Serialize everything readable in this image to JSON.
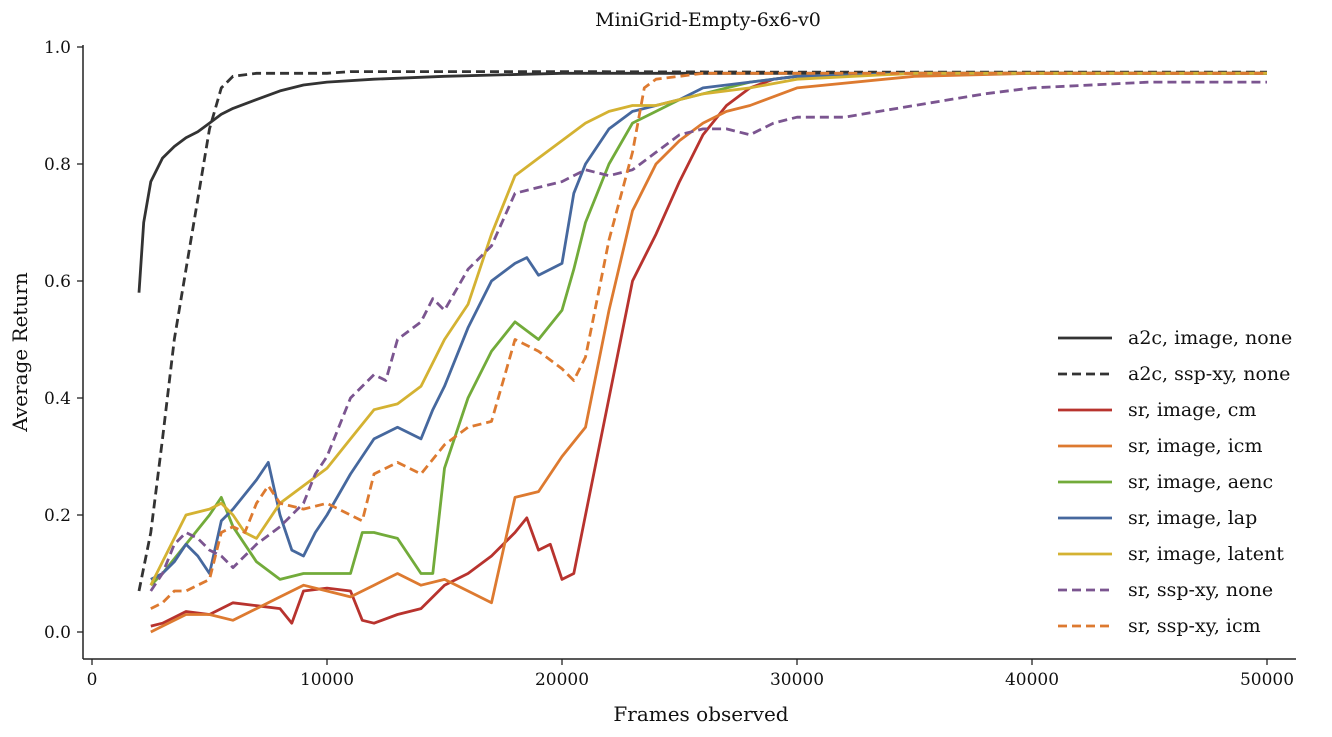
{
  "chart_data": {
    "type": "line",
    "title": "MiniGrid-Empty-6x6-v0",
    "xlabel": "Frames observed",
    "ylabel": "Average Return",
    "xlim": [
      0,
      50000
    ],
    "ylim": [
      0.0,
      1.0
    ],
    "xticks": [
      "0",
      "10000",
      "20000",
      "30000",
      "40000",
      "50000"
    ],
    "yticks": [
      "0.0",
      "0.2",
      "0.4",
      "0.6",
      "0.8",
      "1.0"
    ],
    "grid": false,
    "legend_position": "lower-right",
    "series": [
      {
        "name": "a2c, image, none",
        "color": "#333333",
        "dash": "solid",
        "x": [
          2000,
          2200,
          2500,
          3000,
          3500,
          4000,
          4500,
          5000,
          5500,
          6000,
          7000,
          8000,
          9000,
          10000,
          12000,
          15000,
          20000,
          30000,
          40000,
          50000
        ],
        "y": [
          0.58,
          0.7,
          0.77,
          0.81,
          0.83,
          0.845,
          0.855,
          0.87,
          0.885,
          0.895,
          0.91,
          0.925,
          0.935,
          0.94,
          0.945,
          0.95,
          0.955,
          0.955,
          0.955,
          0.955
        ]
      },
      {
        "name": "a2c, ssp-xy, none",
        "color": "#333333",
        "dash": "dashed",
        "x": [
          2000,
          2500,
          3000,
          3500,
          4000,
          4500,
          5000,
          5500,
          6000,
          7000,
          8000,
          9000,
          10000,
          11000,
          15000,
          20000,
          30000,
          40000,
          50000
        ],
        "y": [
          0.07,
          0.17,
          0.33,
          0.5,
          0.62,
          0.74,
          0.86,
          0.93,
          0.95,
          0.955,
          0.955,
          0.955,
          0.955,
          0.958,
          0.958,
          0.958,
          0.957,
          0.957,
          0.957
        ]
      },
      {
        "name": "sr, image, cm",
        "color": "#b8332e",
        "dash": "solid",
        "x": [
          2500,
          3000,
          4000,
          5000,
          6000,
          7000,
          8000,
          8500,
          9000,
          10000,
          11000,
          11500,
          12000,
          13000,
          14000,
          15000,
          16000,
          17000,
          18000,
          18500,
          19000,
          19500,
          20000,
          20500,
          21000,
          22000,
          23000,
          24000,
          25000,
          26000,
          27000,
          28000,
          29000,
          30000,
          35000,
          40000,
          50000
        ],
        "y": [
          0.01,
          0.015,
          0.035,
          0.03,
          0.05,
          0.045,
          0.04,
          0.015,
          0.07,
          0.075,
          0.07,
          0.02,
          0.015,
          0.03,
          0.04,
          0.08,
          0.1,
          0.13,
          0.17,
          0.195,
          0.14,
          0.15,
          0.09,
          0.1,
          0.2,
          0.4,
          0.6,
          0.68,
          0.77,
          0.85,
          0.9,
          0.93,
          0.945,
          0.95,
          0.955,
          0.955,
          0.955
        ]
      },
      {
        "name": "sr, image, icm",
        "color": "#dd7a30",
        "dash": "solid",
        "x": [
          2500,
          3000,
          4000,
          5000,
          6000,
          7000,
          8000,
          9000,
          10000,
          11000,
          12000,
          13000,
          14000,
          15000,
          16000,
          17000,
          18000,
          19000,
          20000,
          21000,
          22000,
          23000,
          24000,
          25000,
          26000,
          27000,
          28000,
          30000,
          35000,
          40000,
          50000
        ],
        "y": [
          0.0,
          0.01,
          0.03,
          0.03,
          0.02,
          0.04,
          0.06,
          0.08,
          0.07,
          0.06,
          0.08,
          0.1,
          0.08,
          0.09,
          0.07,
          0.05,
          0.23,
          0.24,
          0.3,
          0.35,
          0.55,
          0.72,
          0.8,
          0.84,
          0.87,
          0.89,
          0.9,
          0.93,
          0.95,
          0.955,
          0.955
        ]
      },
      {
        "name": "sr, image, aenc",
        "color": "#72ab3a",
        "dash": "solid",
        "x": [
          2500,
          3000,
          4000,
          5000,
          5500,
          6000,
          7000,
          8000,
          9000,
          10000,
          11000,
          11500,
          12000,
          13000,
          14000,
          14500,
          15000,
          16000,
          17000,
          18000,
          19000,
          20000,
          20500,
          21000,
          22000,
          23000,
          24000,
          25000,
          26000,
          28000,
          30000,
          35000,
          40000,
          50000
        ],
        "y": [
          0.08,
          0.1,
          0.15,
          0.2,
          0.23,
          0.18,
          0.12,
          0.09,
          0.1,
          0.1,
          0.1,
          0.17,
          0.17,
          0.16,
          0.1,
          0.1,
          0.28,
          0.4,
          0.48,
          0.53,
          0.5,
          0.55,
          0.62,
          0.7,
          0.8,
          0.87,
          0.89,
          0.91,
          0.92,
          0.94,
          0.95,
          0.955,
          0.955,
          0.955
        ]
      },
      {
        "name": "sr, image, lap",
        "color": "#46689e",
        "dash": "solid",
        "x": [
          2500,
          3000,
          3500,
          4000,
          4500,
          5000,
          5500,
          6000,
          7000,
          7500,
          8000,
          8500,
          9000,
          9500,
          10000,
          11000,
          12000,
          13000,
          14000,
          14500,
          15000,
          16000,
          17000,
          18000,
          18500,
          19000,
          20000,
          20500,
          21000,
          22000,
          23000,
          24000,
          25000,
          26000,
          28000,
          30000,
          35000,
          40000,
          50000
        ],
        "y": [
          0.09,
          0.1,
          0.12,
          0.15,
          0.13,
          0.1,
          0.19,
          0.21,
          0.26,
          0.29,
          0.2,
          0.14,
          0.13,
          0.17,
          0.2,
          0.27,
          0.33,
          0.35,
          0.33,
          0.38,
          0.42,
          0.52,
          0.6,
          0.63,
          0.64,
          0.61,
          0.63,
          0.75,
          0.8,
          0.86,
          0.89,
          0.9,
          0.91,
          0.93,
          0.94,
          0.95,
          0.955,
          0.955,
          0.955
        ]
      },
      {
        "name": "sr, image, latent",
        "color": "#d4b232",
        "dash": "solid",
        "x": [
          2500,
          3000,
          4000,
          5000,
          5500,
          6000,
          6500,
          7000,
          8000,
          9000,
          10000,
          11000,
          12000,
          13000,
          14000,
          15000,
          16000,
          17000,
          18000,
          19000,
          20000,
          21000,
          22000,
          23000,
          24000,
          25000,
          26000,
          28000,
          30000,
          35000,
          40000,
          50000
        ],
        "y": [
          0.08,
          0.12,
          0.2,
          0.21,
          0.22,
          0.2,
          0.17,
          0.16,
          0.22,
          0.25,
          0.28,
          0.33,
          0.38,
          0.39,
          0.42,
          0.5,
          0.56,
          0.68,
          0.78,
          0.81,
          0.84,
          0.87,
          0.89,
          0.9,
          0.9,
          0.91,
          0.92,
          0.93,
          0.945,
          0.955,
          0.955,
          0.955
        ]
      },
      {
        "name": "sr, ssp-xy, none",
        "color": "#7b5590",
        "dash": "dashed",
        "x": [
          2500,
          3000,
          3500,
          4000,
          4500,
          5000,
          5500,
          6000,
          7000,
          8000,
          9000,
          9500,
          10000,
          11000,
          12000,
          12500,
          13000,
          14000,
          14500,
          15000,
          16000,
          16500,
          17000,
          18000,
          19000,
          20000,
          21000,
          22000,
          23000,
          24000,
          25000,
          26000,
          27000,
          28000,
          29000,
          30000,
          32000,
          35000,
          38000,
          40000,
          45000,
          50000
        ],
        "y": [
          0.07,
          0.1,
          0.15,
          0.17,
          0.16,
          0.14,
          0.13,
          0.11,
          0.15,
          0.18,
          0.22,
          0.27,
          0.3,
          0.4,
          0.44,
          0.43,
          0.5,
          0.53,
          0.57,
          0.55,
          0.62,
          0.64,
          0.66,
          0.75,
          0.76,
          0.77,
          0.79,
          0.78,
          0.79,
          0.82,
          0.85,
          0.86,
          0.86,
          0.85,
          0.87,
          0.88,
          0.88,
          0.9,
          0.92,
          0.93,
          0.94,
          0.94
        ]
      },
      {
        "name": "sr, ssp-xy, icm",
        "color": "#dd7a30",
        "dash": "dashed",
        "x": [
          2500,
          3000,
          3500,
          4000,
          5000,
          5500,
          6000,
          6500,
          7000,
          7500,
          8000,
          9000,
          10000,
          11000,
          11500,
          12000,
          13000,
          14000,
          15000,
          16000,
          17000,
          17500,
          18000,
          19000,
          20000,
          20500,
          21000,
          21500,
          22000,
          23000,
          23500,
          24000,
          25000,
          26000,
          30000,
          40000,
          50000
        ],
        "y": [
          0.04,
          0.05,
          0.07,
          0.07,
          0.09,
          0.17,
          0.18,
          0.17,
          0.22,
          0.25,
          0.22,
          0.21,
          0.22,
          0.2,
          0.19,
          0.27,
          0.29,
          0.27,
          0.32,
          0.35,
          0.36,
          0.43,
          0.5,
          0.48,
          0.45,
          0.43,
          0.47,
          0.57,
          0.67,
          0.82,
          0.93,
          0.945,
          0.95,
          0.955,
          0.955,
          0.955,
          0.955
        ]
      }
    ]
  }
}
